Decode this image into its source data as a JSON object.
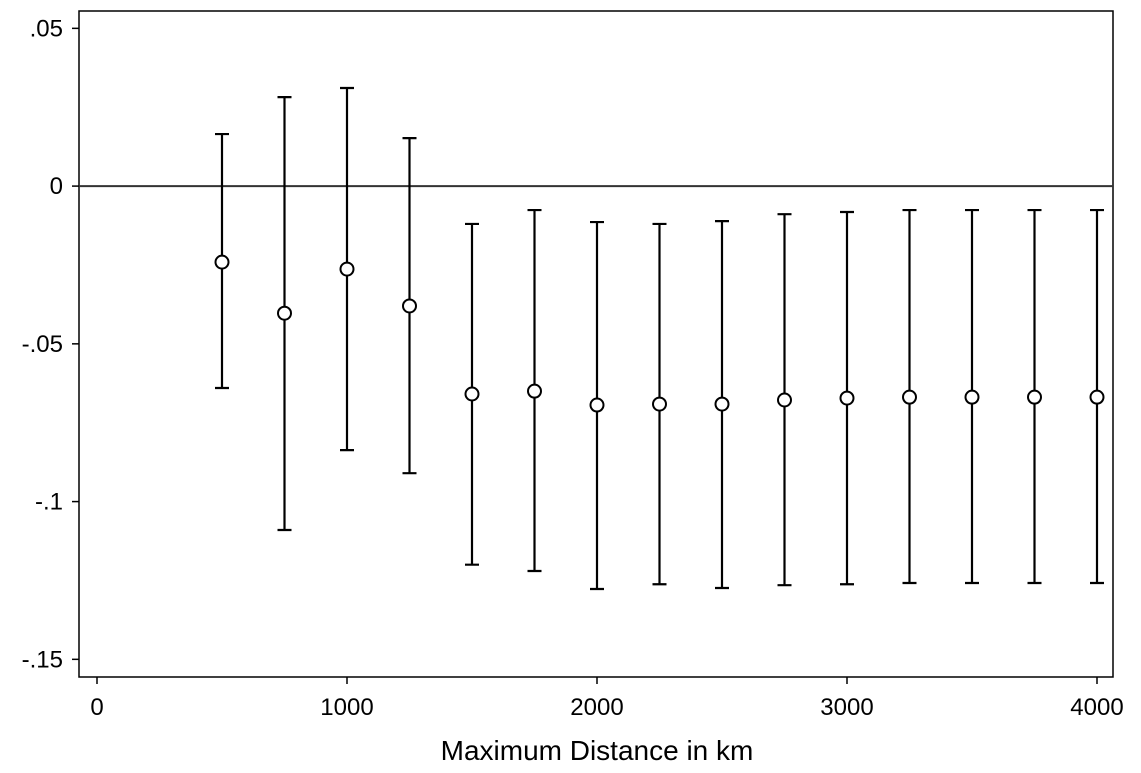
{
  "chart_data": {
    "type": "scatter",
    "x_label": "Maximum Distance in km",
    "x": [
      500,
      750,
      1000,
      1250,
      1500,
      1750,
      2000,
      2250,
      2500,
      2750,
      3000,
      3250,
      3500,
      3750,
      4000
    ],
    "series": [
      {
        "color": "#000000",
        "values": [
          -0.0241,
          -0.0403,
          -0.0263,
          -0.038,
          -0.0659,
          -0.065,
          -0.0694,
          -0.0691,
          -0.0691,
          -0.0678,
          -0.0672,
          -0.0669,
          -0.0669,
          -0.0669,
          -0.0669
        ],
        "lower": [
          -0.064,
          -0.109,
          -0.0837,
          -0.091,
          -0.12,
          -0.122,
          -0.1277,
          -0.1262,
          -0.1274,
          -0.1265,
          -0.1262,
          -0.1258,
          -0.1258,
          -0.1258,
          -0.1258
        ],
        "upper": [
          0.0165,
          0.0282,
          0.0311,
          0.0152,
          -0.012,
          -0.0076,
          -0.0114,
          -0.012,
          -0.0111,
          -0.0089,
          -0.0082,
          -0.0076,
          -0.0076,
          -0.0076,
          -0.0076
        ]
      }
    ],
    "xlim": [
      -72,
      4064
    ],
    "ylim": [
      -0.1556,
      0.0555
    ],
    "xticks": [
      0,
      1000,
      2000,
      3000,
      4000
    ],
    "yticks": [
      {
        "value": 0.05,
        "label": ".05"
      },
      0,
      {
        "value": -0.05,
        "label": "-.05"
      },
      {
        "value": -0.1,
        "label": "-.1"
      },
      {
        "value": -0.15,
        "label": "-.15"
      }
    ],
    "yline": 0
  }
}
